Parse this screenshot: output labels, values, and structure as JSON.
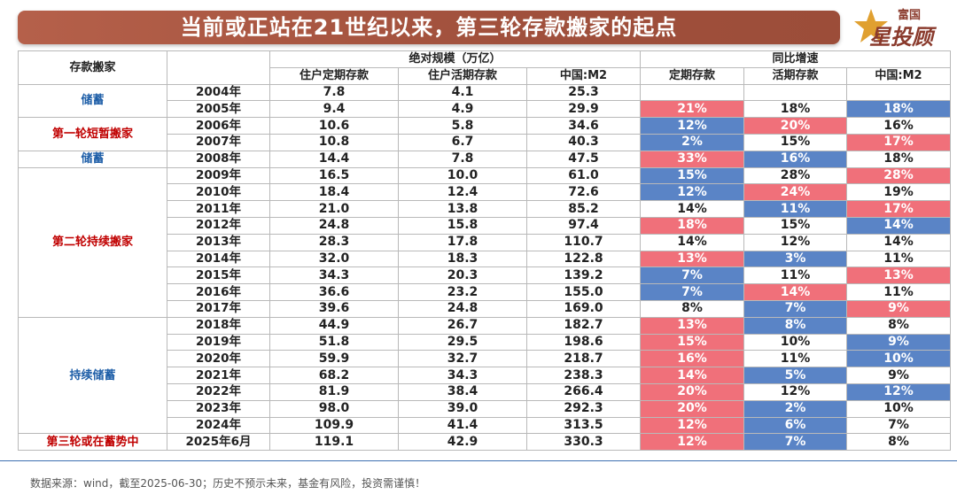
{
  "title": "当前或正站在21世纪以来，第三轮存款搬家的起点",
  "logo": {
    "top": "富国",
    "bottom": "星投顾"
  },
  "table": {
    "header_top": {
      "first_col": "存款搬家",
      "abs_group": "绝对规模（万亿）",
      "yoy_group": "同比增速"
    },
    "sub_headers": [
      "住户定期存款",
      "住户活期存款",
      "中国:M2",
      "定期存款",
      "活期存款",
      "中国:M2"
    ],
    "stages": [
      {
        "label": "储蓄",
        "color": "blue"
      },
      {
        "label": "第一轮短暂搬家",
        "color": "red"
      },
      {
        "label": "储蓄",
        "color": "blue"
      },
      {
        "label": "第二轮持续搬家",
        "color": "red"
      },
      {
        "label": "持续储蓄",
        "color": "blue"
      },
      {
        "label": "第三轮或在蓄势中",
        "color": "red"
      }
    ],
    "rows": [
      {
        "year": "2004年",
        "time_dep": "7.8",
        "demand_dep": "4.1",
        "m2": "25.3",
        "g_time": "",
        "g_demand": "",
        "g_m2": ""
      },
      {
        "year": "2005年",
        "time_dep": "9.4",
        "demand_dep": "4.9",
        "m2": "29.9",
        "g_time": "21%",
        "g_demand": "18%",
        "g_m2": "18%"
      },
      {
        "year": "2006年",
        "time_dep": "10.6",
        "demand_dep": "5.8",
        "m2": "34.6",
        "g_time": "12%",
        "g_demand": "20%",
        "g_m2": "16%"
      },
      {
        "year": "2007年",
        "time_dep": "10.8",
        "demand_dep": "6.7",
        "m2": "40.3",
        "g_time": "2%",
        "g_demand": "15%",
        "g_m2": "17%"
      },
      {
        "year": "2008年",
        "time_dep": "14.4",
        "demand_dep": "7.8",
        "m2": "47.5",
        "g_time": "33%",
        "g_demand": "16%",
        "g_m2": "18%"
      },
      {
        "year": "2009年",
        "time_dep": "16.5",
        "demand_dep": "10.0",
        "m2": "61.0",
        "g_time": "15%",
        "g_demand": "28%",
        "g_m2": "28%"
      },
      {
        "year": "2010年",
        "time_dep": "18.4",
        "demand_dep": "12.4",
        "m2": "72.6",
        "g_time": "12%",
        "g_demand": "24%",
        "g_m2": "19%"
      },
      {
        "year": "2011年",
        "time_dep": "21.0",
        "demand_dep": "13.8",
        "m2": "85.2",
        "g_time": "14%",
        "g_demand": "11%",
        "g_m2": "17%"
      },
      {
        "year": "2012年",
        "time_dep": "24.8",
        "demand_dep": "15.8",
        "m2": "97.4",
        "g_time": "18%",
        "g_demand": "15%",
        "g_m2": "14%"
      },
      {
        "year": "2013年",
        "time_dep": "28.3",
        "demand_dep": "17.8",
        "m2": "110.7",
        "g_time": "14%",
        "g_demand": "12%",
        "g_m2": "14%"
      },
      {
        "year": "2014年",
        "time_dep": "32.0",
        "demand_dep": "18.3",
        "m2": "122.8",
        "g_time": "13%",
        "g_demand": "3%",
        "g_m2": "11%"
      },
      {
        "year": "2015年",
        "time_dep": "34.3",
        "demand_dep": "20.3",
        "m2": "139.2",
        "g_time": "7%",
        "g_demand": "11%",
        "g_m2": "13%"
      },
      {
        "year": "2016年",
        "time_dep": "36.6",
        "demand_dep": "23.2",
        "m2": "155.0",
        "g_time": "7%",
        "g_demand": "14%",
        "g_m2": "11%"
      },
      {
        "year": "2017年",
        "time_dep": "39.6",
        "demand_dep": "24.8",
        "m2": "169.0",
        "g_time": "8%",
        "g_demand": "7%",
        "g_m2": "9%"
      },
      {
        "year": "2018年",
        "time_dep": "44.9",
        "demand_dep": "26.7",
        "m2": "182.7",
        "g_time": "13%",
        "g_demand": "8%",
        "g_m2": "8%"
      },
      {
        "year": "2019年",
        "time_dep": "51.8",
        "demand_dep": "29.5",
        "m2": "198.6",
        "g_time": "15%",
        "g_demand": "10%",
        "g_m2": "9%"
      },
      {
        "year": "2020年",
        "time_dep": "59.9",
        "demand_dep": "32.7",
        "m2": "218.7",
        "g_time": "16%",
        "g_demand": "11%",
        "g_m2": "10%"
      },
      {
        "year": "2021年",
        "time_dep": "68.2",
        "demand_dep": "34.3",
        "m2": "238.3",
        "g_time": "14%",
        "g_demand": "5%",
        "g_m2": "9%"
      },
      {
        "year": "2022年",
        "time_dep": "81.9",
        "demand_dep": "38.4",
        "m2": "266.4",
        "g_time": "20%",
        "g_demand": "12%",
        "g_m2": "12%"
      },
      {
        "year": "2023年",
        "time_dep": "98.0",
        "demand_dep": "39.0",
        "m2": "292.3",
        "g_time": "20%",
        "g_demand": "2%",
        "g_m2": "10%"
      },
      {
        "year": "2024年",
        "time_dep": "109.9",
        "demand_dep": "41.4",
        "m2": "313.5",
        "g_time": "12%",
        "g_demand": "6%",
        "g_m2": "7%"
      },
      {
        "year": "2025年6月",
        "time_dep": "119.1",
        "demand_dep": "42.9",
        "m2": "330.3",
        "g_time": "12%",
        "g_demand": "7%",
        "g_m2": "8%"
      }
    ]
  },
  "footer": "数据来源：wind，截至2025-06-30；历史不预示未来，基金有风险，投资需谨慎！"
}
